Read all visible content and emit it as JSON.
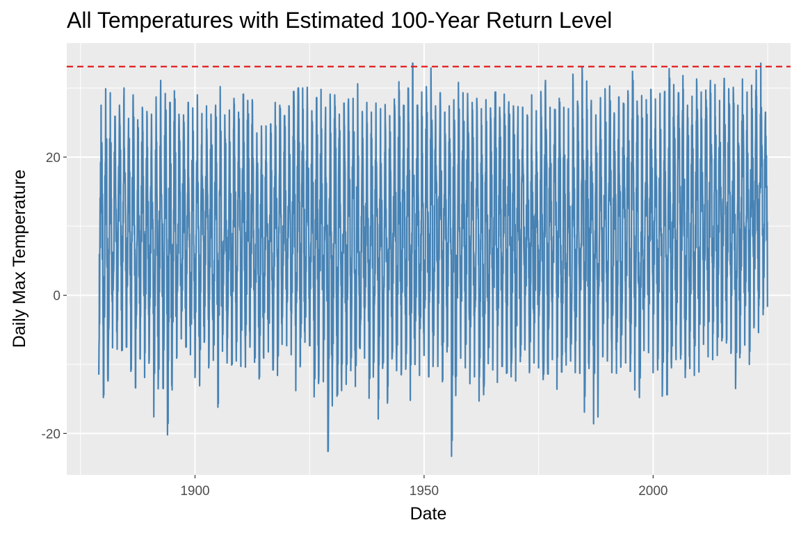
{
  "chart_data": {
    "type": "line",
    "title": "All Temperatures with Estimated 100-Year Return Level",
    "xlabel": "Date",
    "ylabel": "Daily Max Temperature",
    "x_ticks": [
      1900,
      1950,
      2000
    ],
    "y_ticks": [
      -20,
      0,
      20
    ],
    "xlim": [
      1872,
      2030
    ],
    "ylim": [
      -26,
      36.5
    ],
    "grid": true,
    "legend": "none",
    "series": [
      {
        "x_range": [
          1879,
          2024
        ],
        "annual_extremes": [
          [
            1879,
            27.5,
            -11.5
          ],
          [
            1880,
            29.9,
            -14.8
          ],
          [
            1881,
            29.3,
            -12.4
          ],
          [
            1882,
            25.9,
            -7.6
          ],
          [
            1883,
            27.5,
            -7.8
          ],
          [
            1884,
            30.0,
            -8.0
          ],
          [
            1885,
            25.6,
            -7.5
          ],
          [
            1886,
            29.0,
            -11.0
          ],
          [
            1887,
            25.4,
            -13.4
          ],
          [
            1888,
            27.2,
            -9.2
          ],
          [
            1889,
            26.6,
            -11.9
          ],
          [
            1890,
            26.2,
            -9.3
          ],
          [
            1891,
            28.7,
            -17.6
          ],
          [
            1892,
            31.1,
            -10.7
          ],
          [
            1893,
            29.2,
            -13.5
          ],
          [
            1894,
            27.9,
            -20.2
          ],
          [
            1895,
            29.6,
            -13.7
          ],
          [
            1896,
            26.2,
            -9.1
          ],
          [
            1897,
            26.1,
            -6.3
          ],
          [
            1898,
            27.9,
            -7.5
          ],
          [
            1899,
            27.1,
            -8.6
          ],
          [
            1900,
            29.0,
            -11.9
          ],
          [
            1901,
            26.3,
            -13.1
          ],
          [
            1902,
            27.4,
            -6.8
          ],
          [
            1903,
            26.2,
            -10.5
          ],
          [
            1904,
            27.5,
            -9.4
          ],
          [
            1905,
            30.2,
            -16.2
          ],
          [
            1906,
            26.1,
            -8.1
          ],
          [
            1907,
            26.8,
            -9.8
          ],
          [
            1908,
            28.5,
            -10.1
          ],
          [
            1909,
            26.5,
            -9.5
          ],
          [
            1910,
            29.1,
            -10.3
          ],
          [
            1911,
            28.2,
            -10.4
          ],
          [
            1912,
            28.3,
            -7.5
          ],
          [
            1913,
            23.5,
            -9.7
          ],
          [
            1914,
            24.5,
            -12.1
          ],
          [
            1915,
            24.5,
            -9.1
          ],
          [
            1916,
            24.8,
            -8.2
          ],
          [
            1917,
            27.9,
            -10.8
          ],
          [
            1918,
            27.5,
            -11.6
          ],
          [
            1919,
            26.0,
            -7.1
          ],
          [
            1920,
            27.4,
            -7.3
          ],
          [
            1921,
            29.5,
            -8.6
          ],
          [
            1922,
            30.0,
            -13.8
          ],
          [
            1923,
            30.0,
            -9.8
          ],
          [
            1924,
            30.1,
            -6.8
          ],
          [
            1925,
            26.7,
            -7.3
          ],
          [
            1926,
            28.6,
            -14.7
          ],
          [
            1927,
            29.8,
            -12.3
          ],
          [
            1928,
            27.2,
            -12.5
          ],
          [
            1929,
            29.1,
            -22.6
          ],
          [
            1930,
            29.0,
            -10.4
          ],
          [
            1931,
            26.2,
            -14.6
          ],
          [
            1932,
            27.8,
            -13.8
          ],
          [
            1933,
            28.4,
            -12.9
          ],
          [
            1934,
            28.5,
            -10.9
          ],
          [
            1935,
            30.6,
            -13.2
          ],
          [
            1936,
            26.6,
            -7.7
          ],
          [
            1937,
            27.9,
            -9.1
          ],
          [
            1938,
            26.5,
            -14.9
          ],
          [
            1939,
            27.8,
            -9.7
          ],
          [
            1940,
            27.0,
            -17.9
          ],
          [
            1941,
            27.6,
            -9.8
          ],
          [
            1942,
            26.0,
            -15.6
          ],
          [
            1943,
            28.4,
            -9.2
          ],
          [
            1944,
            30.9,
            -10.9
          ],
          [
            1945,
            27.5,
            -11.5
          ],
          [
            1946,
            30.0,
            -10.7
          ],
          [
            1947,
            33.6,
            -15.2
          ],
          [
            1948,
            27.5,
            -10.0
          ],
          [
            1949,
            29.4,
            -11.6
          ],
          [
            1950,
            30.2,
            -8.7
          ],
          [
            1951,
            32.9,
            -11.8
          ],
          [
            1952,
            27.4,
            -8.4
          ],
          [
            1953,
            29.3,
            -10.3
          ],
          [
            1954,
            26.5,
            -12.5
          ],
          [
            1955,
            27.4,
            -8.2
          ],
          [
            1956,
            28.3,
            -23.3
          ],
          [
            1957,
            30.8,
            -11.7
          ],
          [
            1958,
            29.3,
            -9.1
          ],
          [
            1959,
            29.2,
            -10.5
          ],
          [
            1960,
            27.9,
            -12.8
          ],
          [
            1961,
            28.5,
            -11.8
          ],
          [
            1962,
            27.0,
            -15.3
          ],
          [
            1963,
            28.3,
            -14.4
          ],
          [
            1964,
            27.1,
            -9.9
          ],
          [
            1965,
            29.4,
            -10.8
          ],
          [
            1966,
            27.2,
            -12.6
          ],
          [
            1967,
            29.1,
            -10.3
          ],
          [
            1968,
            28.0,
            -11.3
          ],
          [
            1969,
            27.4,
            -11.8
          ],
          [
            1970,
            27.3,
            -12.4
          ],
          [
            1971,
            27.2,
            -9.6
          ],
          [
            1972,
            26.1,
            -7.9
          ],
          [
            1973,
            29.0,
            -11.2
          ],
          [
            1974,
            26.7,
            -9.8
          ],
          [
            1975,
            29.5,
            -10.5
          ],
          [
            1976,
            31.1,
            -12.2
          ],
          [
            1977,
            27.2,
            -11.4
          ],
          [
            1978,
            26.9,
            -9.3
          ],
          [
            1979,
            28.5,
            -13.6
          ],
          [
            1980,
            27.2,
            -11.1
          ],
          [
            1981,
            27.0,
            -10.1
          ],
          [
            1982,
            32.0,
            -9.5
          ],
          [
            1983,
            28.1,
            -11.2
          ],
          [
            1984,
            33.0,
            -11.3
          ],
          [
            1985,
            31.0,
            -16.9
          ],
          [
            1986,
            28.2,
            -10.6
          ],
          [
            1987,
            26.1,
            -18.6
          ],
          [
            1988,
            28.6,
            -9.8
          ],
          [
            1989,
            29.9,
            -8.9
          ],
          [
            1990,
            30.3,
            -9.5
          ],
          [
            1991,
            26.4,
            -11.2
          ],
          [
            1992,
            28.7,
            -11.3
          ],
          [
            1993,
            27.8,
            -7.8
          ],
          [
            1994,
            29.6,
            -9.8
          ],
          [
            1995,
            32.4,
            -11.0
          ],
          [
            1996,
            28.1,
            -13.7
          ],
          [
            1997,
            28.9,
            -14.8
          ],
          [
            1998,
            28.3,
            -8.0
          ],
          [
            1999,
            29.8,
            -8.3
          ],
          [
            2000,
            28.4,
            -11.2
          ],
          [
            2001,
            29.2,
            -10.8
          ],
          [
            2002,
            29.5,
            -14.6
          ],
          [
            2003,
            32.8,
            -14.4
          ],
          [
            2004,
            30.5,
            -10.5
          ],
          [
            2005,
            29.3,
            -9.3
          ],
          [
            2006,
            31.8,
            -9.2
          ],
          [
            2007,
            27.5,
            -11.9
          ],
          [
            2008,
            28.8,
            -10.6
          ],
          [
            2009,
            31.3,
            -11.6
          ],
          [
            2010,
            29.4,
            -11.1
          ],
          [
            2011,
            29.7,
            -7.1
          ],
          [
            2012,
            31.1,
            -8.9
          ],
          [
            2013,
            30.5,
            -9.3
          ],
          [
            2014,
            28.2,
            -8.7
          ],
          [
            2015,
            31.4,
            -6.6
          ],
          [
            2016,
            29.9,
            -6.9
          ],
          [
            2017,
            30.1,
            -8.4
          ],
          [
            2018,
            27.5,
            -13.5
          ],
          [
            2019,
            31.3,
            -8.4
          ],
          [
            2020,
            29.4,
            -7.2
          ],
          [
            2021,
            30.4,
            -10.0
          ],
          [
            2022,
            32.6,
            -4.7
          ],
          [
            2023,
            33.6,
            -5.4
          ],
          [
            2024,
            26.5,
            -2.8
          ]
        ]
      }
    ],
    "reference_line": {
      "y": 33.1,
      "style": "dashed",
      "color": "#e41a1c"
    },
    "colors": {
      "line": "#4682b4",
      "panel": "#ebebeb",
      "grid": "#ffffff",
      "tick_text": "#4d4d4d"
    }
  }
}
